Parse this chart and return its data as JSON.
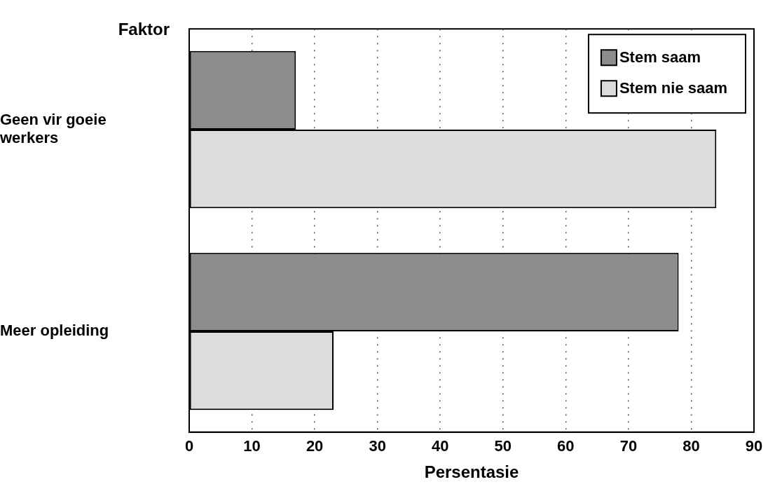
{
  "chart_data": {
    "type": "bar",
    "orientation": "horizontal",
    "ylabel": "Faktor",
    "xlabel": "Persentasie",
    "categories": [
      "Geen vir goeie werkers",
      "Meer opleiding"
    ],
    "series": [
      {
        "name": "Stem saam",
        "color": "#8c8c8c",
        "values": [
          17,
          78
        ]
      },
      {
        "name": "Stem nie saam",
        "color": "#dcdcdc",
        "values": [
          84,
          23
        ]
      }
    ],
    "xlim": [
      0,
      90
    ],
    "xticks": [
      0,
      10,
      20,
      30,
      40,
      50,
      60,
      70,
      80,
      90
    ],
    "grid": "x",
    "legend": "top right"
  }
}
